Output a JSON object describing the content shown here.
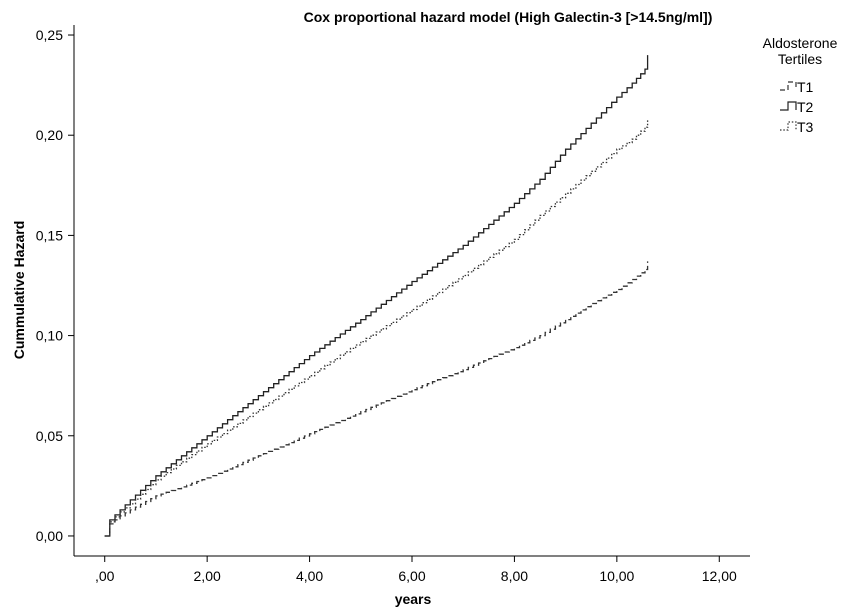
{
  "chart_data": {
    "type": "line",
    "title": "Cox proportional hazard model (High Galectin-3 [>14.5ng/ml])",
    "xlabel": "years",
    "ylabel": "Cummulative Hazard",
    "xlim": [
      -0.6,
      12.6
    ],
    "ylim": [
      -0.01,
      0.255
    ],
    "xticks": [
      0,
      2,
      4,
      6,
      8,
      10,
      12
    ],
    "xtick_labels": [
      ",00",
      "2,00",
      "4,00",
      "6,00",
      "8,00",
      "10,00",
      "12,00"
    ],
    "yticks": [
      0,
      0.05,
      0.1,
      0.15,
      0.2,
      0.25
    ],
    "ytick_labels": [
      "0,00",
      "0,05",
      "0,10",
      "0,15",
      "0,20",
      "0,25"
    ],
    "grid": false,
    "legend": {
      "title": "Aldosterone Tertiles",
      "placement": "right",
      "entries": [
        "T1",
        "T2",
        "T3"
      ]
    },
    "series": [
      {
        "name": "T1",
        "style": "dashed",
        "color": "#333333",
        "x": [
          0,
          0.1,
          0.3,
          0.5,
          1,
          2,
          3,
          4,
          5,
          6,
          7,
          8,
          8.5,
          9,
          9.5,
          10,
          10.3,
          10.55,
          10.6
        ],
        "y": [
          0,
          0.006,
          0.01,
          0.013,
          0.02,
          0.029,
          0.04,
          0.051,
          0.062,
          0.073,
          0.083,
          0.094,
          0.1,
          0.108,
          0.116,
          0.123,
          0.128,
          0.133,
          0.137
        ]
      },
      {
        "name": "T2",
        "style": "solid",
        "color": "#222222",
        "x": [
          0,
          0.1,
          0.3,
          0.5,
          1,
          2,
          3,
          4,
          5,
          6,
          7,
          8,
          8.5,
          9,
          9.5,
          10,
          10.3,
          10.55,
          10.6
        ],
        "y": [
          0,
          0.008,
          0.013,
          0.018,
          0.03,
          0.05,
          0.07,
          0.09,
          0.108,
          0.127,
          0.145,
          0.166,
          0.178,
          0.193,
          0.206,
          0.219,
          0.226,
          0.233,
          0.24
        ]
      },
      {
        "name": "T3",
        "style": "dotted",
        "color": "#333333",
        "x": [
          0,
          0.1,
          0.3,
          0.5,
          1,
          2,
          3,
          4,
          5,
          6,
          7,
          8,
          8.5,
          9,
          9.5,
          10,
          10.3,
          10.55,
          10.6
        ],
        "y": [
          0,
          0.007,
          0.012,
          0.016,
          0.028,
          0.046,
          0.063,
          0.08,
          0.097,
          0.113,
          0.13,
          0.148,
          0.16,
          0.171,
          0.182,
          0.193,
          0.198,
          0.204,
          0.208
        ]
      }
    ]
  }
}
